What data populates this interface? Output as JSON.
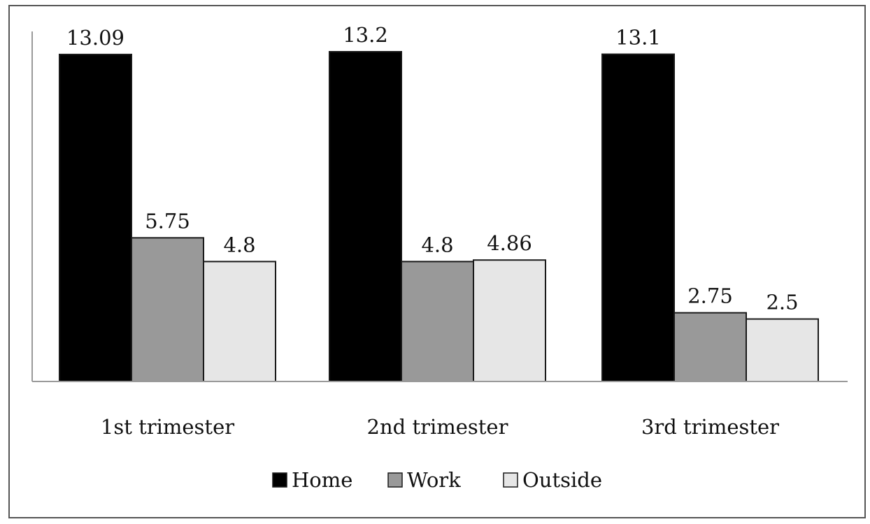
{
  "chart_data": {
    "type": "bar",
    "title": "",
    "xlabel": "",
    "ylabel": "",
    "categories": [
      "1st trimester",
      "2nd trimester",
      "3rd trimester"
    ],
    "series": [
      {
        "name": "Home",
        "values": [
          13.09,
          13.2,
          13.1
        ],
        "labels": [
          "13.09",
          "13.2",
          "13.1"
        ],
        "color": "#000000"
      },
      {
        "name": "Work",
        "values": [
          5.75,
          4.8,
          2.75
        ],
        "labels": [
          "5.75",
          "4.8",
          "2.75"
        ],
        "color": "#999999"
      },
      {
        "name": "Outside",
        "values": [
          4.8,
          4.86,
          2.5
        ],
        "labels": [
          "4.8",
          "4.86",
          "2.5"
        ],
        "color": "#e6e6e6"
      }
    ],
    "ylim": [
      0,
      13.2
    ],
    "grid": false,
    "y_axis_visible": false,
    "legend_position": "bottom"
  }
}
